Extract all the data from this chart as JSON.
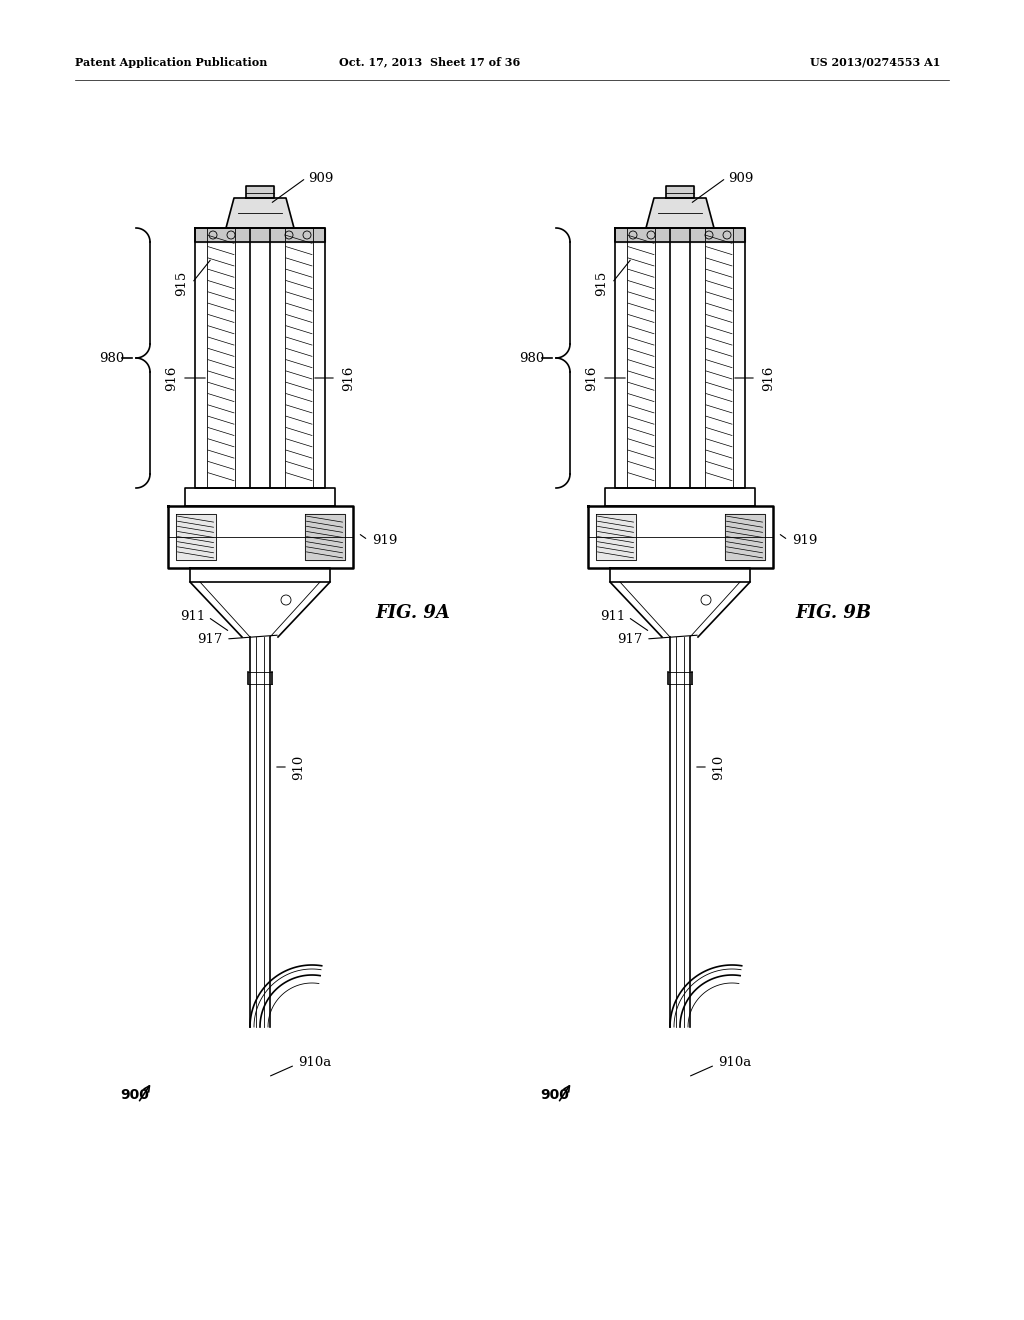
{
  "bg_color": "#ffffff",
  "line_color": "#000000",
  "header_left": "Patent Application Publication",
  "header_center": "Oct. 17, 2013  Sheet 17 of 36",
  "header_right": "US 2013/0274553 A1",
  "fig_A_label": "FIG. 9A",
  "fig_B_label": "FIG. 9B",
  "lw_thick": 1.8,
  "lw_med": 1.2,
  "lw_thin": 0.6
}
